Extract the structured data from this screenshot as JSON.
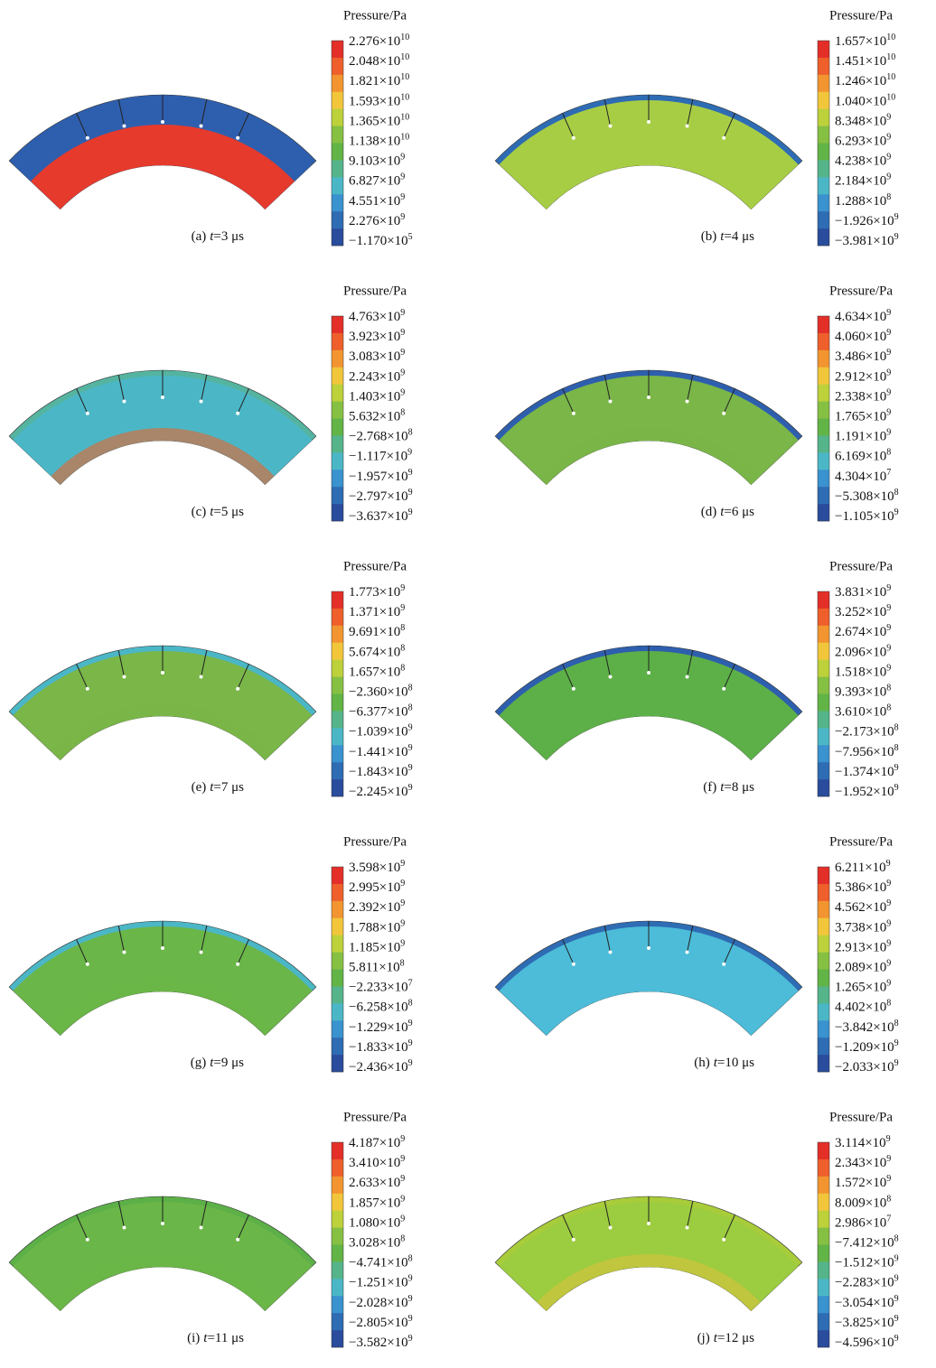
{
  "panels": [
    {
      "title": "Pressure/Pa",
      "caption": [
        "(a)",
        "t",
        "=3 μs"
      ],
      "labels": [
        [
          "2.276×10",
          "10"
        ],
        [
          "2.048×10",
          "10"
        ],
        [
          "1.821×10",
          "10"
        ],
        [
          "1.593×10",
          "10"
        ],
        [
          "1.365×10",
          "10"
        ],
        [
          "1.138×10",
          "10"
        ],
        [
          "9.103×10",
          "9"
        ],
        [
          "6.827×10",
          "9"
        ],
        [
          "4.551×10",
          "9"
        ],
        [
          "2.276×10",
          "9"
        ],
        [
          "−1.170×10",
          "5"
        ]
      ]
    },
    {
      "title": "Pressure/Pa",
      "caption": [
        "(b)",
        "t",
        "=4 μs"
      ],
      "labels": [
        [
          "1.657×10",
          "10"
        ],
        [
          "1.451×10",
          "10"
        ],
        [
          "1.246×10",
          "10"
        ],
        [
          "1.040×10",
          "10"
        ],
        [
          "8.348×10",
          "9"
        ],
        [
          "6.293×10",
          "9"
        ],
        [
          "4.238×10",
          "9"
        ],
        [
          "2.184×10",
          "9"
        ],
        [
          "1.288×10",
          "8"
        ],
        [
          "−1.926×10",
          "9"
        ],
        [
          "−3.981×10",
          "9"
        ]
      ]
    },
    {
      "title": "Pressure/Pa",
      "caption": [
        "(c)",
        "t",
        "=5 μs"
      ],
      "labels": [
        [
          "4.763×10",
          "9"
        ],
        [
          "3.923×10",
          "9"
        ],
        [
          "3.083×10",
          "9"
        ],
        [
          "2.243×10",
          "9"
        ],
        [
          "1.403×10",
          "9"
        ],
        [
          "5.632×10",
          "8"
        ],
        [
          "−2.768×10",
          "8"
        ],
        [
          "−1.117×10",
          "9"
        ],
        [
          "−1.957×10",
          "9"
        ],
        [
          "−2.797×10",
          "9"
        ],
        [
          "−3.637×10",
          "9"
        ]
      ]
    },
    {
      "title": "Pressure/Pa",
      "caption": [
        "(d)",
        "t",
        "=6 μs"
      ],
      "labels": [
        [
          "4.634×10",
          "9"
        ],
        [
          "4.060×10",
          "9"
        ],
        [
          "3.486×10",
          "9"
        ],
        [
          "2.912×10",
          "9"
        ],
        [
          "2.338×10",
          "9"
        ],
        [
          "1.765×10",
          "9"
        ],
        [
          "1.191×10",
          "9"
        ],
        [
          "6.169×10",
          "8"
        ],
        [
          "4.304×10",
          "7"
        ],
        [
          "−5.308×10",
          "8"
        ],
        [
          "−1.105×10",
          "9"
        ]
      ]
    },
    {
      "title": "Pressure/Pa",
      "caption": [
        "(e)",
        "t",
        "=7 μs"
      ],
      "labels": [
        [
          "1.773×10",
          "9"
        ],
        [
          "1.371×10",
          "9"
        ],
        [
          "9.691×10",
          "8"
        ],
        [
          "5.674×10",
          "8"
        ],
        [
          "1.657×10",
          "8"
        ],
        [
          "−2.360×10",
          "8"
        ],
        [
          "−6.377×10",
          "8"
        ],
        [
          "−1.039×10",
          "9"
        ],
        [
          "−1.441×10",
          "9"
        ],
        [
          "−1.843×10",
          "9"
        ],
        [
          "−2.245×10",
          "9"
        ]
      ]
    },
    {
      "title": "Pressure/Pa",
      "caption": [
        "(f)",
        "t",
        "=8 μs"
      ],
      "labels": [
        [
          "3.831×10",
          "9"
        ],
        [
          "3.252×10",
          "9"
        ],
        [
          "2.674×10",
          "9"
        ],
        [
          "2.096×10",
          "9"
        ],
        [
          "1.518×10",
          "9"
        ],
        [
          "9.393×10",
          "8"
        ],
        [
          "3.610×10",
          "8"
        ],
        [
          "−2.173×10",
          "8"
        ],
        [
          "−7.956×10",
          "8"
        ],
        [
          "−1.374×10",
          "9"
        ],
        [
          "−1.952×10",
          "9"
        ]
      ]
    },
    {
      "title": "Pressure/Pa",
      "caption": [
        "(g)",
        "t",
        "=9 μs"
      ],
      "labels": [
        [
          "3.598×10",
          "9"
        ],
        [
          "2.995×10",
          "9"
        ],
        [
          "2.392×10",
          "9"
        ],
        [
          "1.788×10",
          "9"
        ],
        [
          "1.185×10",
          "9"
        ],
        [
          "5.811×10",
          "8"
        ],
        [
          "−2.233×10",
          "7"
        ],
        [
          "−6.258×10",
          "8"
        ],
        [
          "−1.229×10",
          "9"
        ],
        [
          "−1.833×10",
          "9"
        ],
        [
          "−2.436×10",
          "9"
        ]
      ]
    },
    {
      "title": "Pressure/Pa",
      "caption": [
        "(h)",
        "t",
        "=10 μs"
      ],
      "labels": [
        [
          "6.211×10",
          "9"
        ],
        [
          "5.386×10",
          "9"
        ],
        [
          "4.562×10",
          "9"
        ],
        [
          "3.738×10",
          "9"
        ],
        [
          "2.913×10",
          "9"
        ],
        [
          "2.089×10",
          "9"
        ],
        [
          "1.265×10",
          "9"
        ],
        [
          "4.402×10",
          "8"
        ],
        [
          "−3.842×10",
          "8"
        ],
        [
          "−1.209×10",
          "9"
        ],
        [
          "−2.033×10",
          "9"
        ]
      ]
    },
    {
      "title": "Pressure/Pa",
      "caption": [
        "(i)",
        "t",
        "=11 μs"
      ],
      "labels": [
        [
          "4.187×10",
          "9"
        ],
        [
          "3.410×10",
          "9"
        ],
        [
          "2.633×10",
          "9"
        ],
        [
          "1.857×10",
          "9"
        ],
        [
          "1.080×10",
          "9"
        ],
        [
          "3.028×10",
          "8"
        ],
        [
          "−4.741×10",
          "8"
        ],
        [
          "−1.251×10",
          "9"
        ],
        [
          "−2.028×10",
          "9"
        ],
        [
          "−2.805×10",
          "9"
        ],
        [
          "−3.582×10",
          "9"
        ]
      ]
    },
    {
      "title": "Pressure/Pa",
      "caption": [
        "(j)",
        "t",
        "=12 μs"
      ],
      "labels": [
        [
          "3.114×10",
          "9"
        ],
        [
          "2.343×10",
          "9"
        ],
        [
          "1.572×10",
          "9"
        ],
        [
          "8.009×10",
          "8"
        ],
        [
          "2.986×10",
          "7"
        ],
        [
          "−7.412×10",
          "8"
        ],
        [
          "−1.512×10",
          "9"
        ],
        [
          "−2.283×10",
          "9"
        ],
        [
          "−3.054×10",
          "9"
        ],
        [
          "−3.825×10",
          "9"
        ],
        [
          "−4.596×10",
          "9"
        ]
      ]
    }
  ]
}
